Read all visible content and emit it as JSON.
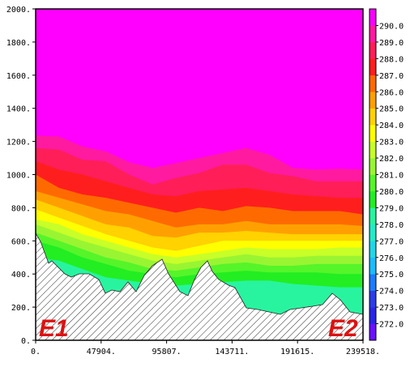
{
  "chart_data": {
    "type": "heatmap",
    "title": "",
    "xlabel": "",
    "ylabel": "",
    "xlim": [
      0,
      239518
    ],
    "ylim": [
      0,
      2000
    ],
    "x_ticks": [
      "0.",
      "47904.",
      "95807.",
      "143711.",
      "191615.",
      "239518."
    ],
    "y_ticks": [
      "0.",
      "200.",
      "400.",
      "600.",
      "800.",
      "1000.",
      "1200.",
      "1400.",
      "1600.",
      "1800.",
      "2000."
    ],
    "x_tick_values": [
      0,
      47904,
      95807,
      143711,
      191615,
      239518
    ],
    "y_tick_values": [
      0,
      200,
      400,
      600,
      800,
      1000,
      1200,
      1400,
      1600,
      1800,
      2000
    ],
    "annotations": [
      {
        "text": "E1",
        "position": "bottom-left",
        "color": "#dd1111"
      },
      {
        "text": "E2",
        "position": "bottom-right",
        "color": "#dd1111"
      }
    ],
    "colorbar": {
      "levels": [
        "272.0",
        "273.0",
        "274.0",
        "275.0",
        "276.0",
        "277.0",
        "278.0",
        "279.0",
        "280.0",
        "281.0",
        "282.0",
        "283.0",
        "284.0",
        "285.0",
        "286.0",
        "287.0",
        "288.0",
        "289.0",
        "290.0"
      ],
      "colors": [
        "#6a11ff",
        "#2a24e8",
        "#2a3de8",
        "#1c7cff",
        "#1cbbff",
        "#22d6e6",
        "#22ecc8",
        "#28f4a0",
        "#22ee22",
        "#55f52a",
        "#99f532",
        "#c8ff28",
        "#ffff00",
        "#ffd200",
        "#ffa000",
        "#ff6a00",
        "#ff1e1e",
        "#ff1e58",
        "#ff1aa0",
        "#ff00ff"
      ]
    },
    "temperature_bands": [
      {
        "level": 290,
        "color": "#ff00ff",
        "surface": [
          1300,
          1310,
          1250,
          1260,
          1220,
          1140,
          1180,
          1200,
          1245,
          1270,
          1240,
          1160,
          1100,
          1100,
          1110
        ]
      },
      {
        "level": 289,
        "color": "#ff1aa0",
        "surface": [
          1235,
          1230,
          1170,
          1140,
          1075,
          1040,
          1070,
          1100,
          1130,
          1160,
          1120,
          1040,
          1030,
          1035,
          1030
        ]
      },
      {
        "level": 288,
        "color": "#ff1e58",
        "surface": [
          1160,
          1150,
          1090,
          1080,
          1000,
          940,
          980,
          1010,
          1060,
          1060,
          1010,
          990,
          960,
          960,
          960
        ]
      },
      {
        "level": 287,
        "color": "#ff1e1e",
        "surface": [
          1080,
          1030,
          1000,
          960,
          920,
          880,
          870,
          900,
          910,
          920,
          900,
          880,
          870,
          860,
          860
        ]
      },
      {
        "level": 286,
        "color": "#ff6a00",
        "surface": [
          1000,
          920,
          880,
          860,
          830,
          800,
          770,
          800,
          780,
          810,
          800,
          780,
          780,
          780,
          760
        ]
      },
      {
        "level": 285,
        "color": "#ffa000",
        "surface": [
          900,
          860,
          820,
          780,
          760,
          720,
          680,
          700,
          700,
          720,
          700,
          700,
          700,
          700,
          690
        ]
      },
      {
        "level": 284,
        "color": "#ffd200",
        "surface": [
          850,
          800,
          750,
          700,
          680,
          630,
          620,
          650,
          650,
          660,
          650,
          640,
          640,
          640,
          640
        ]
      },
      {
        "level": 283,
        "color": "#ffff00",
        "surface": [
          790,
          740,
          690,
          640,
          600,
          560,
          540,
          570,
          600,
          600,
          600,
          600,
          600,
          600,
          600
        ]
      },
      {
        "level": 282,
        "color": "#c8ff28",
        "surface": [
          730,
          700,
          640,
          600,
          560,
          520,
          500,
          520,
          540,
          560,
          550,
          550,
          550,
          560,
          560
        ]
      },
      {
        "level": 281,
        "color": "#99f532",
        "surface": [
          700,
          650,
          600,
          560,
          520,
          480,
          460,
          480,
          500,
          520,
          500,
          500,
          510,
          510,
          510
        ]
      },
      {
        "level": 280,
        "color": "#55f52a",
        "surface": [
          650,
          600,
          550,
          500,
          470,
          430,
          420,
          440,
          460,
          470,
          450,
          450,
          460,
          460,
          460
        ]
      },
      {
        "level": 279,
        "color": "#22ee22",
        "surface": [
          600,
          560,
          500,
          460,
          420,
          400,
          380,
          400,
          410,
          420,
          410,
          410,
          410,
          400,
          400
        ]
      },
      {
        "level": 278,
        "color": "#28f4a0",
        "surface": [
          500,
          480,
          430,
          380,
          360,
          340,
          330,
          340,
          350,
          360,
          360,
          340,
          330,
          320,
          320
        ]
      }
    ]
  }
}
